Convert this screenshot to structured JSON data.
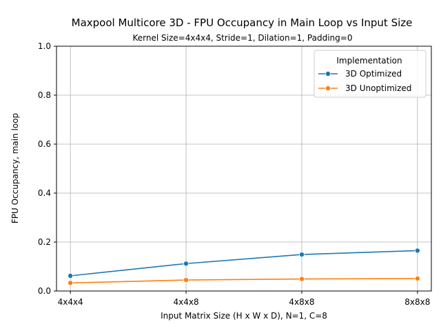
{
  "chart_data": {
    "type": "line",
    "title": "Maxpool Multicore 3D - FPU Occupancy in Main Loop vs Input Size",
    "subtitle": "Kernel Size=4x4x4, Stride=1, Dilation=1, Padding=0",
    "xlabel": "Input Matrix Size (H x W x D), N=1, C=8",
    "ylabel": "FPU Occupancy, main loop",
    "categories": [
      "4x4x4",
      "4x4x8",
      "4x8x8",
      "8x8x8"
    ],
    "ylim": [
      0,
      1.0
    ],
    "yticks": [
      "0.0",
      "0.2",
      "0.4",
      "0.6",
      "0.8",
      "1.0"
    ],
    "grid": true,
    "legend": {
      "title": "Implementation",
      "placement": "top-right"
    },
    "series": [
      {
        "name": "3D Optimized",
        "color": "#1f77b4",
        "values": [
          0.062,
          0.112,
          0.149,
          0.165
        ]
      },
      {
        "name": "3D Unoptimized",
        "color": "#ff7f0e",
        "values": [
          0.033,
          0.045,
          0.049,
          0.051
        ]
      }
    ]
  }
}
